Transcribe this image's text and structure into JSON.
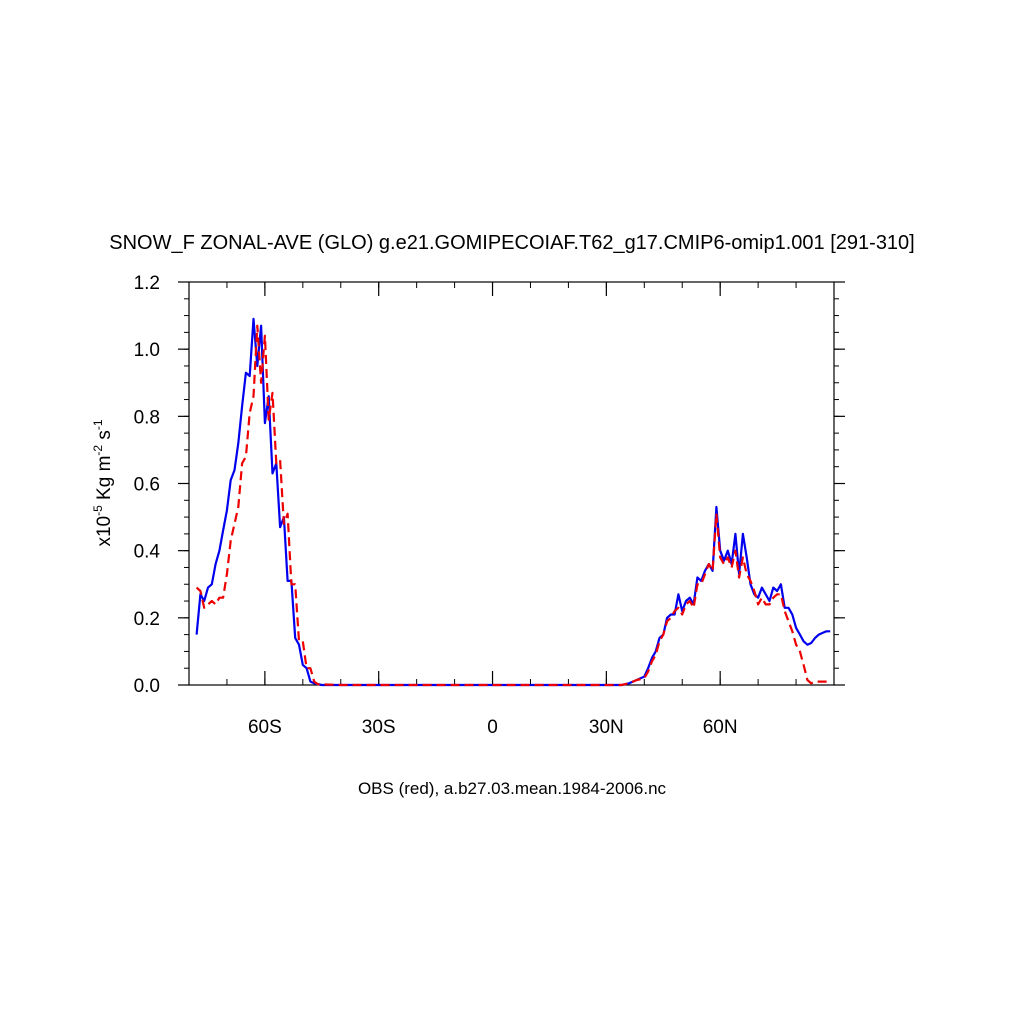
{
  "chart_data": {
    "type": "line",
    "title": "SNOW_F ZONAL-AVE (GLO) g.e21.GOMIPECOIAF.T62_g17.CMIP6-omip1.001 [291-310]",
    "xlabel": "OBS (red), a.b27.03.mean.1984-2006.nc",
    "ylabel": {
      "prefix": "x10",
      "exp1": "-5",
      "mid": " Kg m",
      "exp2": "-2",
      "mid2": " s",
      "exp3": "-1"
    },
    "xlim": [
      -80,
      90
    ],
    "ylim": [
      0,
      1.2
    ],
    "x_ticks": [
      {
        "value": -60,
        "label": "60S"
      },
      {
        "value": -30,
        "label": "30S"
      },
      {
        "value": 0,
        "label": "0"
      },
      {
        "value": 30,
        "label": "30N"
      },
      {
        "value": 60,
        "label": "60N"
      }
    ],
    "y_ticks": [
      {
        "value": 0.0,
        "label": "0.0"
      },
      {
        "value": 0.2,
        "label": "0.2"
      },
      {
        "value": 0.4,
        "label": "0.4"
      },
      {
        "value": 0.6,
        "label": "0.6"
      },
      {
        "value": 0.8,
        "label": "0.8"
      },
      {
        "value": 1.0,
        "label": "1.0"
      },
      {
        "value": 1.2,
        "label": "1.2"
      }
    ],
    "series": [
      {
        "color": "#0000ee",
        "dash": "solid",
        "points": [
          [
            -78,
            0.15
          ],
          [
            -77,
            0.27
          ],
          [
            -76,
            0.25
          ],
          [
            -75,
            0.29
          ],
          [
            -74,
            0.3
          ],
          [
            -73,
            0.36
          ],
          [
            -72,
            0.4
          ],
          [
            -71,
            0.46
          ],
          [
            -70,
            0.52
          ],
          [
            -69,
            0.61
          ],
          [
            -68,
            0.64
          ],
          [
            -67,
            0.72
          ],
          [
            -66,
            0.83
          ],
          [
            -65,
            0.93
          ],
          [
            -64,
            0.92
          ],
          [
            -63,
            1.09
          ],
          [
            -62,
            0.95
          ],
          [
            -61,
            1.07
          ],
          [
            -60,
            0.78
          ],
          [
            -59,
            0.86
          ],
          [
            -58,
            0.63
          ],
          [
            -57,
            0.66
          ],
          [
            -56,
            0.47
          ],
          [
            -55,
            0.5
          ],
          [
            -54,
            0.31
          ],
          [
            -53,
            0.31
          ],
          [
            -52,
            0.14
          ],
          [
            -51,
            0.12
          ],
          [
            -50,
            0.06
          ],
          [
            -49,
            0.05
          ],
          [
            -48,
            0.01
          ],
          [
            -47,
            0.005
          ],
          [
            -45,
            0.0
          ],
          [
            -40,
            0.0
          ],
          [
            -30,
            0.0
          ],
          [
            -20,
            0.0
          ],
          [
            -10,
            0.0
          ],
          [
            0,
            0.0
          ],
          [
            10,
            0.0
          ],
          [
            20,
            0.0
          ],
          [
            30,
            0.0
          ],
          [
            34,
            0.0
          ],
          [
            36,
            0.005
          ],
          [
            38,
            0.015
          ],
          [
            40,
            0.025
          ],
          [
            41,
            0.05
          ],
          [
            42,
            0.08
          ],
          [
            43,
            0.1
          ],
          [
            44,
            0.14
          ],
          [
            45,
            0.15
          ],
          [
            46,
            0.2
          ],
          [
            47,
            0.21
          ],
          [
            48,
            0.21
          ],
          [
            49,
            0.27
          ],
          [
            50,
            0.22
          ],
          [
            51,
            0.25
          ],
          [
            52,
            0.26
          ],
          [
            53,
            0.24
          ],
          [
            54,
            0.32
          ],
          [
            55,
            0.31
          ],
          [
            56,
            0.34
          ],
          [
            57,
            0.36
          ],
          [
            58,
            0.34
          ],
          [
            59,
            0.53
          ],
          [
            60,
            0.4
          ],
          [
            61,
            0.37
          ],
          [
            62,
            0.4
          ],
          [
            63,
            0.36
          ],
          [
            64,
            0.45
          ],
          [
            65,
            0.33
          ],
          [
            66,
            0.45
          ],
          [
            67,
            0.38
          ],
          [
            68,
            0.3
          ],
          [
            69,
            0.27
          ],
          [
            70,
            0.26
          ],
          [
            71,
            0.29
          ],
          [
            72,
            0.27
          ],
          [
            73,
            0.25
          ],
          [
            74,
            0.29
          ],
          [
            75,
            0.28
          ],
          [
            76,
            0.3
          ],
          [
            77,
            0.23
          ],
          [
            78,
            0.23
          ],
          [
            79,
            0.21
          ],
          [
            80,
            0.17
          ],
          [
            81,
            0.15
          ],
          [
            82,
            0.13
          ],
          [
            83,
            0.12
          ],
          [
            84,
            0.125
          ],
          [
            85,
            0.14
          ],
          [
            86,
            0.15
          ],
          [
            87,
            0.155
          ],
          [
            88,
            0.16
          ],
          [
            89,
            0.16
          ]
        ]
      },
      {
        "color": "#ee0000",
        "dash": "dashed",
        "points": [
          [
            -78,
            0.29
          ],
          [
            -77,
            0.28
          ],
          [
            -76,
            0.23
          ],
          [
            -75,
            0.24
          ],
          [
            -74,
            0.25
          ],
          [
            -73,
            0.24
          ],
          [
            -72,
            0.26
          ],
          [
            -71,
            0.26
          ],
          [
            -70,
            0.33
          ],
          [
            -69,
            0.43
          ],
          [
            -68,
            0.48
          ],
          [
            -67,
            0.53
          ],
          [
            -66,
            0.66
          ],
          [
            -65,
            0.68
          ],
          [
            -64,
            0.81
          ],
          [
            -63,
            0.86
          ],
          [
            -62,
            1.07
          ],
          [
            -61,
            0.9
          ],
          [
            -60,
            1.04
          ],
          [
            -59,
            0.79
          ],
          [
            -58,
            0.87
          ],
          [
            -57,
            0.66
          ],
          [
            -56,
            0.67
          ],
          [
            -55,
            0.48
          ],
          [
            -54,
            0.51
          ],
          [
            -53,
            0.3
          ],
          [
            -52,
            0.3
          ],
          [
            -51,
            0.13
          ],
          [
            -50,
            0.13
          ],
          [
            -49,
            0.05
          ],
          [
            -48,
            0.05
          ],
          [
            -47,
            0.01
          ],
          [
            -46,
            0.002
          ],
          [
            -40,
            0.0
          ],
          [
            -30,
            0.0
          ],
          [
            -20,
            0.0
          ],
          [
            -10,
            0.0
          ],
          [
            0,
            0.0
          ],
          [
            10,
            0.0
          ],
          [
            20,
            0.0
          ],
          [
            30,
            0.0
          ],
          [
            34,
            0.0
          ],
          [
            36,
            0.005
          ],
          [
            38,
            0.015
          ],
          [
            40,
            0.02
          ],
          [
            41,
            0.04
          ],
          [
            42,
            0.07
          ],
          [
            43,
            0.09
          ],
          [
            44,
            0.13
          ],
          [
            45,
            0.15
          ],
          [
            46,
            0.19
          ],
          [
            47,
            0.2
          ],
          [
            48,
            0.22
          ],
          [
            49,
            0.23
          ],
          [
            50,
            0.21
          ],
          [
            51,
            0.24
          ],
          [
            52,
            0.25
          ],
          [
            53,
            0.23
          ],
          [
            54,
            0.3
          ],
          [
            55,
            0.3
          ],
          [
            56,
            0.33
          ],
          [
            57,
            0.36
          ],
          [
            58,
            0.34
          ],
          [
            59,
            0.51
          ],
          [
            60,
            0.38
          ],
          [
            61,
            0.36
          ],
          [
            62,
            0.38
          ],
          [
            63,
            0.35
          ],
          [
            64,
            0.4
          ],
          [
            65,
            0.32
          ],
          [
            66,
            0.38
          ],
          [
            67,
            0.33
          ],
          [
            68,
            0.31
          ],
          [
            69,
            0.28
          ],
          [
            70,
            0.24
          ],
          [
            71,
            0.26
          ],
          [
            72,
            0.24
          ],
          [
            73,
            0.24
          ],
          [
            74,
            0.26
          ],
          [
            75,
            0.27
          ],
          [
            76,
            0.27
          ],
          [
            77,
            0.22
          ],
          [
            78,
            0.19
          ],
          [
            79,
            0.16
          ],
          [
            80,
            0.12
          ],
          [
            81,
            0.1
          ],
          [
            82,
            0.06
          ],
          [
            83,
            0.015
          ],
          [
            84,
            0.005
          ],
          [
            85,
            0.01
          ],
          [
            86,
            0.01
          ],
          [
            87,
            0.01
          ],
          [
            88,
            0.01
          ],
          [
            89,
            0.01
          ]
        ]
      }
    ]
  }
}
